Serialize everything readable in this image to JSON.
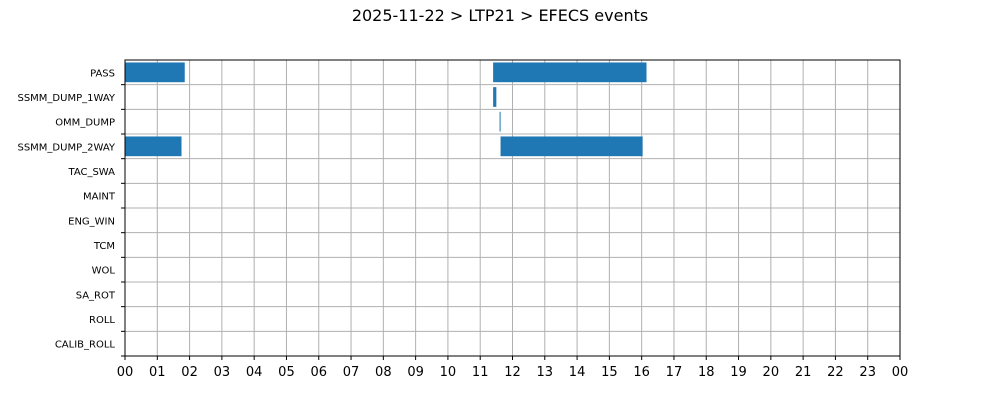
{
  "chart_data": {
    "type": "bar",
    "orientation": "horizontal-timeline",
    "title": "2025-11-22 > LTP21 > EFECS events",
    "xlabel": "",
    "ylabel": "",
    "xlim": [
      0,
      24
    ],
    "x_ticks": [
      "00",
      "01",
      "02",
      "03",
      "04",
      "05",
      "06",
      "07",
      "08",
      "09",
      "10",
      "11",
      "12",
      "13",
      "14",
      "15",
      "16",
      "17",
      "18",
      "19",
      "20",
      "21",
      "22",
      "23",
      "00"
    ],
    "categories": [
      "PASS",
      "SSMM_DUMP_1WAY",
      "OMM_DUMP",
      "SSMM_DUMP_2WAY",
      "TAC_SWA",
      "MAINT",
      "ENG_WIN",
      "TCM",
      "WOL",
      "SA_ROT",
      "ROLL",
      "CALIB_ROLL"
    ],
    "grid": true,
    "bar_color": "#1f77b4",
    "events": [
      {
        "category": "PASS",
        "start": 0.0,
        "end": 1.85
      },
      {
        "category": "PASS",
        "start": 11.4,
        "end": 16.15
      },
      {
        "category": "SSMM_DUMP_1WAY",
        "start": 11.4,
        "end": 11.5
      },
      {
        "category": "OMM_DUMP",
        "start": 11.6,
        "end": 11.63
      },
      {
        "category": "SSMM_DUMP_2WAY",
        "start": 0.0,
        "end": 1.75
      },
      {
        "category": "SSMM_DUMP_2WAY",
        "start": 11.63,
        "end": 16.03
      }
    ]
  }
}
